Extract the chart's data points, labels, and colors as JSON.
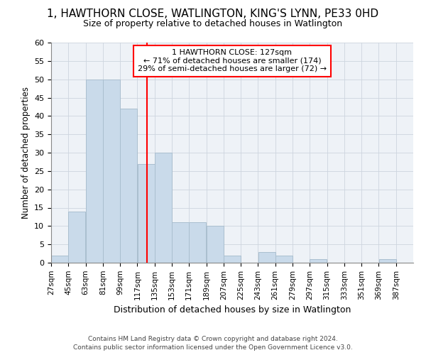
{
  "title": "1, HAWTHORN CLOSE, WATLINGTON, KING'S LYNN, PE33 0HD",
  "subtitle": "Size of property relative to detached houses in Watlington",
  "xlabel": "Distribution of detached houses by size in Watlington",
  "ylabel": "Number of detached properties",
  "bar_color": "#c9daea",
  "bar_edge_color": "#aabfcf",
  "bar_left_edges": [
    27,
    45,
    63,
    81,
    99,
    117,
    135,
    153,
    171,
    189,
    207,
    225,
    243,
    261,
    279,
    297,
    315,
    333,
    351,
    369
  ],
  "bar_heights": [
    2,
    14,
    50,
    50,
    42,
    27,
    30,
    11,
    11,
    10,
    2,
    0,
    3,
    2,
    0,
    1,
    0,
    0,
    0,
    1
  ],
  "bin_width": 18,
  "tick_labels": [
    "27sqm",
    "45sqm",
    "63sqm",
    "81sqm",
    "99sqm",
    "117sqm",
    "135sqm",
    "153sqm",
    "171sqm",
    "189sqm",
    "207sqm",
    "225sqm",
    "243sqm",
    "261sqm",
    "279sqm",
    "297sqm",
    "315sqm",
    "333sqm",
    "351sqm",
    "369sqm",
    "387sqm"
  ],
  "tick_positions": [
    27,
    45,
    63,
    81,
    99,
    117,
    135,
    153,
    171,
    189,
    207,
    225,
    243,
    261,
    279,
    297,
    315,
    333,
    351,
    369,
    387
  ],
  "red_line_x": 127,
  "annotation_line1": "1 HAWTHORN CLOSE: 127sqm",
  "annotation_line2": "← 71% of detached houses are smaller (174)",
  "annotation_line3": "29% of semi-detached houses are larger (72) →",
  "ylim": [
    0,
    60
  ],
  "yticks": [
    0,
    5,
    10,
    15,
    20,
    25,
    30,
    35,
    40,
    45,
    50,
    55,
    60
  ],
  "footer1": "Contains HM Land Registry data © Crown copyright and database right 2024.",
  "footer2": "Contains public sector information licensed under the Open Government Licence v3.0.",
  "bg_color": "#eef2f7",
  "grid_color": "#cdd5df"
}
